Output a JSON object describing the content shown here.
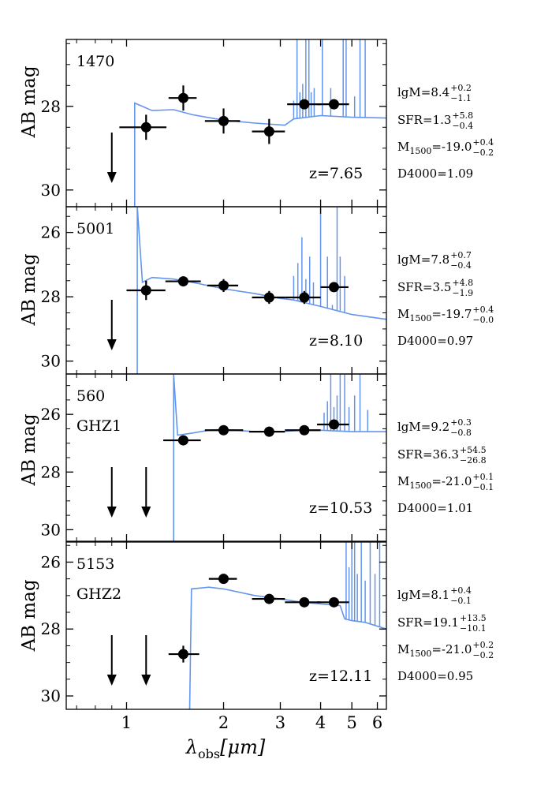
{
  "figure": {
    "xlabel_symbol": "λ",
    "xlabel_sub": "obs",
    "xlabel_unit": "[μm]",
    "ylabel": "AB mag",
    "x_scale": "log",
    "xlim": [
      0.65,
      6.4
    ],
    "x_ticks": [
      1,
      2,
      3,
      4,
      5,
      6
    ],
    "x_tick_labels": [
      "1",
      "2",
      "3",
      "4",
      "5",
      "6"
    ],
    "colors": {
      "model": "#6495ED",
      "points": "#000000"
    }
  },
  "chart_data": [
    {
      "type": "scatter",
      "id": "1470",
      "alt_name": "",
      "redshift": "z=7.65",
      "ylim": [
        30.4,
        26.4
      ],
      "y_ticks": [
        28,
        30
      ],
      "y_tick_labels": [
        "28",
        "30"
      ],
      "props": [
        {
          "name": "lgM",
          "value": "=8.4",
          "sup": "+0.2",
          "sub": "−1.1"
        },
        {
          "name": "SFR",
          "value": "=1.3",
          "sup": "+5.8",
          "sub": "−0.4"
        },
        {
          "name": "M",
          "name_sub": "1500",
          "value": "=-19.0",
          "sup": "+0.4",
          "sub": "−0.2"
        },
        {
          "name": "D4000",
          "value": "=1.09"
        }
      ],
      "points": [
        {
          "x": 1.15,
          "y": 28.5,
          "xerr": [
            0.95,
            1.33
          ],
          "yerr": 0.3
        },
        {
          "x": 1.5,
          "y": 27.8,
          "xerr": [
            1.35,
            1.65
          ],
          "yerr": 0.3
        },
        {
          "x": 2.0,
          "y": 28.35,
          "xerr": [
            1.75,
            2.25
          ],
          "yerr": 0.3
        },
        {
          "x": 2.77,
          "y": 28.6,
          "xerr": [
            2.45,
            3.1
          ],
          "yerr": 0.3
        },
        {
          "x": 3.56,
          "y": 27.95,
          "xerr": [
            3.15,
            4.0
          ],
          "yerr": 0.0
        },
        {
          "x": 4.4,
          "y": 27.95,
          "xerr": [
            3.9,
            4.9
          ],
          "yerr": 0.0
        }
      ],
      "upper_limits": [
        0.9
      ],
      "model": {
        "break": 1.06,
        "cont": [
          [
            1.06,
            27.92
          ],
          [
            1.2,
            28.1
          ],
          [
            1.4,
            28.08
          ],
          [
            1.6,
            28.2
          ],
          [
            2.0,
            28.33
          ],
          [
            2.5,
            28.4
          ],
          [
            3.1,
            28.45
          ],
          [
            3.3,
            28.3
          ],
          [
            4.0,
            28.22
          ],
          [
            5.0,
            28.26
          ],
          [
            6.4,
            28.28
          ]
        ],
        "lines": [
          [
            3.3,
            27.9
          ],
          [
            3.38,
            26.4
          ],
          [
            3.45,
            27.7
          ],
          [
            3.52,
            27.5
          ],
          [
            3.6,
            26.4
          ],
          [
            3.68,
            26.4
          ],
          [
            3.74,
            27.7
          ],
          [
            3.82,
            27.6
          ],
          [
            4.05,
            26.4
          ],
          [
            4.3,
            27.6
          ],
          [
            4.7,
            26.4
          ],
          [
            4.8,
            26.4
          ],
          [
            5.1,
            27.8
          ],
          [
            5.3,
            26.4
          ],
          [
            5.5,
            26.4
          ]
        ]
      }
    },
    {
      "type": "scatter",
      "id": "5001",
      "alt_name": "",
      "redshift": "z=8.10",
      "ylim": [
        30.4,
        25.2
      ],
      "y_ticks": [
        26,
        28,
        30
      ],
      "y_tick_labels": [
        "26",
        "28",
        "30"
      ],
      "props": [
        {
          "name": "lgM",
          "value": "=7.8",
          "sup": "+0.7",
          "sub": "−0.4"
        },
        {
          "name": "SFR",
          "value": "=3.5",
          "sup": "+4.8",
          "sub": "−1.9"
        },
        {
          "name": "M",
          "name_sub": "1500",
          "value": "=-19.7",
          "sup": "+0.4",
          "sub": "−0.0"
        },
        {
          "name": "D4000",
          "value": "=0.97"
        }
      ],
      "points": [
        {
          "x": 1.15,
          "y": 27.8,
          "xerr": [
            1.0,
            1.32
          ],
          "yerr": 0.3
        },
        {
          "x": 1.5,
          "y": 27.52,
          "xerr": [
            1.32,
            1.7
          ],
          "yerr": 0.0
        },
        {
          "x": 2.0,
          "y": 27.65,
          "xerr": [
            1.78,
            2.22
          ],
          "yerr": 0.2
        },
        {
          "x": 2.77,
          "y": 28.02,
          "xerr": [
            2.45,
            3.1
          ],
          "yerr": 0.2
        },
        {
          "x": 3.56,
          "y": 28.02,
          "xerr": [
            3.1,
            4.0
          ],
          "yerr": 0.2
        },
        {
          "x": 4.4,
          "y": 27.7,
          "xerr": [
            4.0,
            4.88
          ],
          "yerr": 0.0
        }
      ],
      "upper_limits": [
        0.9
      ],
      "model": {
        "break": 1.08,
        "cont": [
          [
            1.08,
            25.2
          ],
          [
            1.12,
            27.55
          ],
          [
            1.2,
            27.4
          ],
          [
            1.4,
            27.45
          ],
          [
            1.6,
            27.55
          ],
          [
            2.0,
            27.75
          ],
          [
            2.5,
            27.9
          ],
          [
            3.0,
            28.05
          ],
          [
            3.3,
            28.1
          ],
          [
            4.0,
            28.3
          ],
          [
            5.0,
            28.55
          ],
          [
            6.4,
            28.7
          ]
        ],
        "lines": [
          [
            3.3,
            27.4
          ],
          [
            3.4,
            27.0
          ],
          [
            3.5,
            26.2
          ],
          [
            3.6,
            27.5
          ],
          [
            3.7,
            26.8
          ],
          [
            3.8,
            27.6
          ],
          [
            4.0,
            25.2
          ],
          [
            4.2,
            26.8
          ],
          [
            4.35,
            28.3
          ],
          [
            4.5,
            25.2
          ],
          [
            4.6,
            26.8
          ],
          [
            4.75,
            27.4
          ]
        ]
      }
    },
    {
      "type": "scatter",
      "id": "560",
      "alt_name": "GHZ1",
      "redshift": "z=10.53",
      "ylim": [
        30.4,
        24.6
      ],
      "y_ticks": [
        26,
        28,
        30
      ],
      "y_tick_labels": [
        "26",
        "28",
        "30"
      ],
      "props": [
        {
          "name": "lgM",
          "value": "=9.2",
          "sup": "+0.3",
          "sub": "−0.8"
        },
        {
          "name": "SFR",
          "value": "=36.3",
          "sup": "+54.5",
          "sub": "−26.8"
        },
        {
          "name": "M",
          "name_sub": "1500",
          "value": "=-21.0",
          "sup": "+0.1",
          "sub": "−0.1"
        },
        {
          "name": "D4000",
          "value": "=1.01"
        }
      ],
      "points": [
        {
          "x": 1.5,
          "y": 26.9,
          "xerr": [
            1.3,
            1.7
          ],
          "yerr": 0.0
        },
        {
          "x": 2.0,
          "y": 26.55,
          "xerr": [
            1.75,
            2.3
          ],
          "yerr": 0.0
        },
        {
          "x": 2.77,
          "y": 26.6,
          "xerr": [
            2.4,
            3.1
          ],
          "yerr": 0.0
        },
        {
          "x": 3.56,
          "y": 26.55,
          "xerr": [
            3.1,
            4.0
          ],
          "yerr": 0.0
        },
        {
          "x": 4.4,
          "y": 26.35,
          "xerr": [
            3.9,
            4.9
          ],
          "yerr": 0.0
        }
      ],
      "upper_limits": [
        0.9,
        1.15
      ],
      "model": {
        "break": 1.4,
        "cont": [
          [
            1.4,
            24.6
          ],
          [
            1.44,
            26.72
          ],
          [
            1.6,
            26.65
          ],
          [
            1.8,
            26.55
          ],
          [
            2.0,
            26.52
          ],
          [
            2.5,
            26.6
          ],
          [
            3.0,
            26.6
          ],
          [
            3.5,
            26.55
          ],
          [
            4.0,
            26.55
          ],
          [
            5.0,
            26.6
          ],
          [
            6.4,
            26.6
          ]
        ],
        "lines": [
          [
            4.1,
            26.0
          ],
          [
            4.2,
            25.6
          ],
          [
            4.3,
            24.6
          ],
          [
            4.4,
            25.8
          ],
          [
            4.5,
            25.4
          ],
          [
            4.6,
            24.6
          ],
          [
            4.75,
            24.6
          ],
          [
            4.9,
            25.8
          ],
          [
            5.1,
            25.4
          ],
          [
            5.3,
            24.6
          ],
          [
            5.6,
            25.9
          ]
        ]
      }
    },
    {
      "type": "scatter",
      "id": "5153",
      "alt_name": "GHZ2",
      "redshift": "z=12.11",
      "ylim": [
        30.4,
        25.4
      ],
      "y_ticks": [
        26,
        28,
        30
      ],
      "y_tick_labels": [
        "26",
        "28",
        "30"
      ],
      "props": [
        {
          "name": "lgM",
          "value": "=8.1",
          "sup": "+0.4",
          "sub": "−0.1"
        },
        {
          "name": "SFR",
          "value": "=19.1",
          "sup": "+13.5",
          "sub": "−10.1"
        },
        {
          "name": "M",
          "name_sub": "1500",
          "value": "=-21.0",
          "sup": "+0.2",
          "sub": "−0.2"
        },
        {
          "name": "D4000",
          "value": "=0.95"
        }
      ],
      "points": [
        {
          "x": 1.5,
          "y": 28.75,
          "xerr": [
            1.35,
            1.68
          ],
          "yerr": 0.25
        },
        {
          "x": 2.0,
          "y": 26.5,
          "xerr": [
            1.8,
            2.2
          ],
          "yerr": 0.0
        },
        {
          "x": 2.77,
          "y": 27.1,
          "xerr": [
            2.45,
            3.1
          ],
          "yerr": 0.0
        },
        {
          "x": 3.56,
          "y": 27.2,
          "xerr": [
            3.1,
            4.0
          ],
          "yerr": 0.0
        },
        {
          "x": 4.4,
          "y": 27.2,
          "xerr": [
            3.9,
            4.9
          ],
          "yerr": 0.0
        }
      ],
      "upper_limits": [
        0.9,
        1.15
      ],
      "model": {
        "break": 1.57,
        "cont": [
          [
            1.57,
            30.4
          ],
          [
            1.59,
            26.8
          ],
          [
            1.8,
            26.75
          ],
          [
            2.0,
            26.8
          ],
          [
            2.5,
            27.0
          ],
          [
            3.0,
            27.1
          ],
          [
            3.5,
            27.2
          ],
          [
            4.0,
            27.25
          ],
          [
            4.6,
            27.3
          ],
          [
            4.75,
            27.7
          ],
          [
            5.0,
            27.75
          ],
          [
            5.5,
            27.8
          ],
          [
            6.4,
            28.0
          ]
        ],
        "lines": [
          [
            4.8,
            25.4
          ],
          [
            4.9,
            26.2
          ],
          [
            5.0,
            25.4
          ],
          [
            5.1,
            25.4
          ],
          [
            5.2,
            26.4
          ],
          [
            5.35,
            25.4
          ],
          [
            5.5,
            26.6
          ],
          [
            5.7,
            25.4
          ],
          [
            5.9,
            26.4
          ],
          [
            6.1,
            25.4
          ]
        ]
      }
    }
  ]
}
